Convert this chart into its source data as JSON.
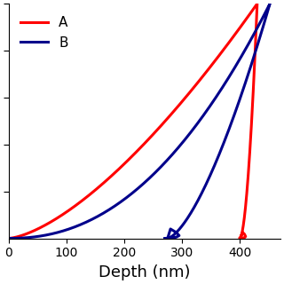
{
  "title": "",
  "xlabel": "Depth (nm)",
  "ylabel": "",
  "xlim": [
    0,
    470
  ],
  "ylim": [
    0,
    1.0
  ],
  "legend_A": "A",
  "legend_B": "B",
  "color_A": "#FF0000",
  "color_B": "#00008B",
  "linewidth": 2.2,
  "background_color": "#FFFFFF",
  "xticks": [
    0,
    100,
    200,
    300,
    400
  ],
  "xlabel_fontsize": 13,
  "legend_fontsize": 11
}
